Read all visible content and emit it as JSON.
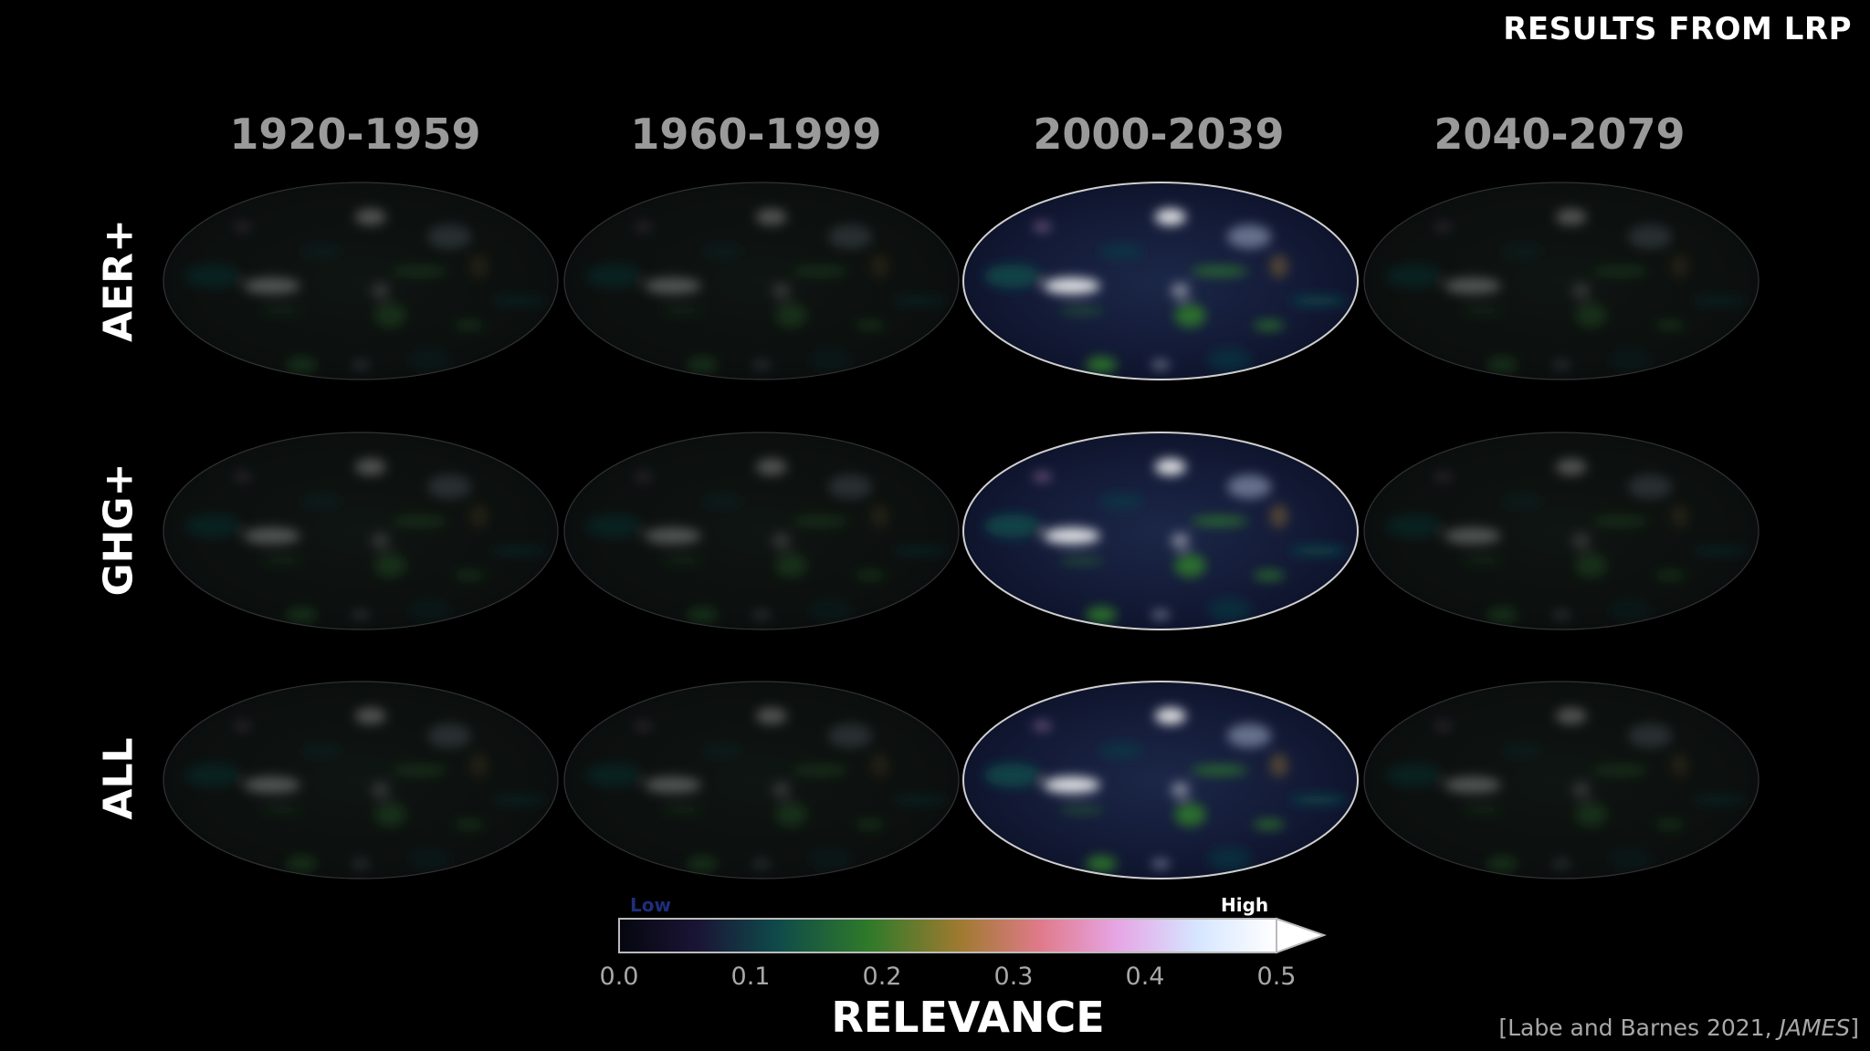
{
  "header": {
    "title": "RESULTS FROM LRP"
  },
  "chart_data": {
    "type": "heatmap",
    "columns": [
      "1920-1959",
      "1960-1999",
      "2000-2039",
      "2040-2079"
    ],
    "rows": [
      "AER+",
      "GHG+",
      "ALL"
    ],
    "relative_intensity": [
      [
        0.35,
        0.35,
        1.0,
        0.45
      ],
      [
        0.35,
        0.35,
        1.0,
        0.35
      ],
      [
        0.35,
        0.4,
        1.0,
        0.35
      ]
    ],
    "colorbar": {
      "title": "RELEVANCE",
      "low_label": "Low",
      "high_label": "High",
      "ticks": [
        "0.0",
        "0.1",
        "0.2",
        "0.3",
        "0.4",
        "0.5"
      ],
      "range": [
        0.0,
        0.5
      ],
      "extend": "max",
      "colors": [
        "#06060f",
        "#1a1535",
        "#0f4a4a",
        "#2f7a2a",
        "#a07a30",
        "#e07a8a",
        "#e6a6e6",
        "#d6e6ff",
        "#ffffff"
      ]
    }
  },
  "citation": {
    "prefix": "[Labe and Barnes 2021, ",
    "journal": "JAMES",
    "suffix": "]"
  }
}
